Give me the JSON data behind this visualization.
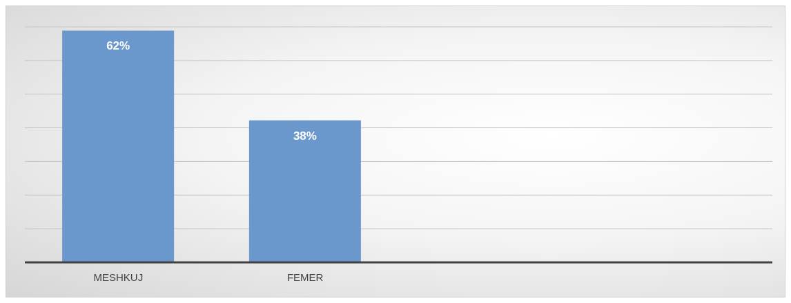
{
  "chart_data": {
    "type": "bar",
    "categories": [
      "MESHKUJ",
      "FEMER",
      null,
      null
    ],
    "values": [
      62,
      38,
      null,
      null
    ],
    "color": "#6a97cc",
    "value_labels": [
      "62%",
      "38%",
      null,
      null
    ],
    "grid": "y",
    "tick_labels": "x"
  }
}
